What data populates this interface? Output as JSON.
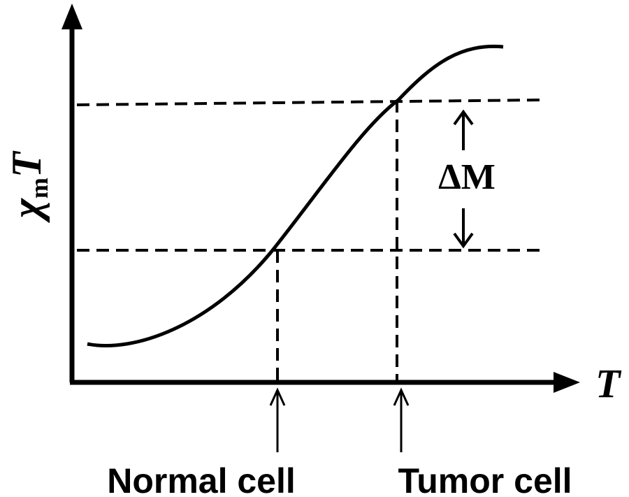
{
  "axes": {
    "y_label_main": "χ",
    "y_label_sub": "m",
    "y_label_var": "T",
    "x_label": "T"
  },
  "annotation": {
    "delta": "ΔM"
  },
  "markers": {
    "normal_label": "Normal cell",
    "tumor_label": "Tumor cell"
  },
  "colors": {
    "ink": "#000000",
    "background": "#ffffff"
  }
}
